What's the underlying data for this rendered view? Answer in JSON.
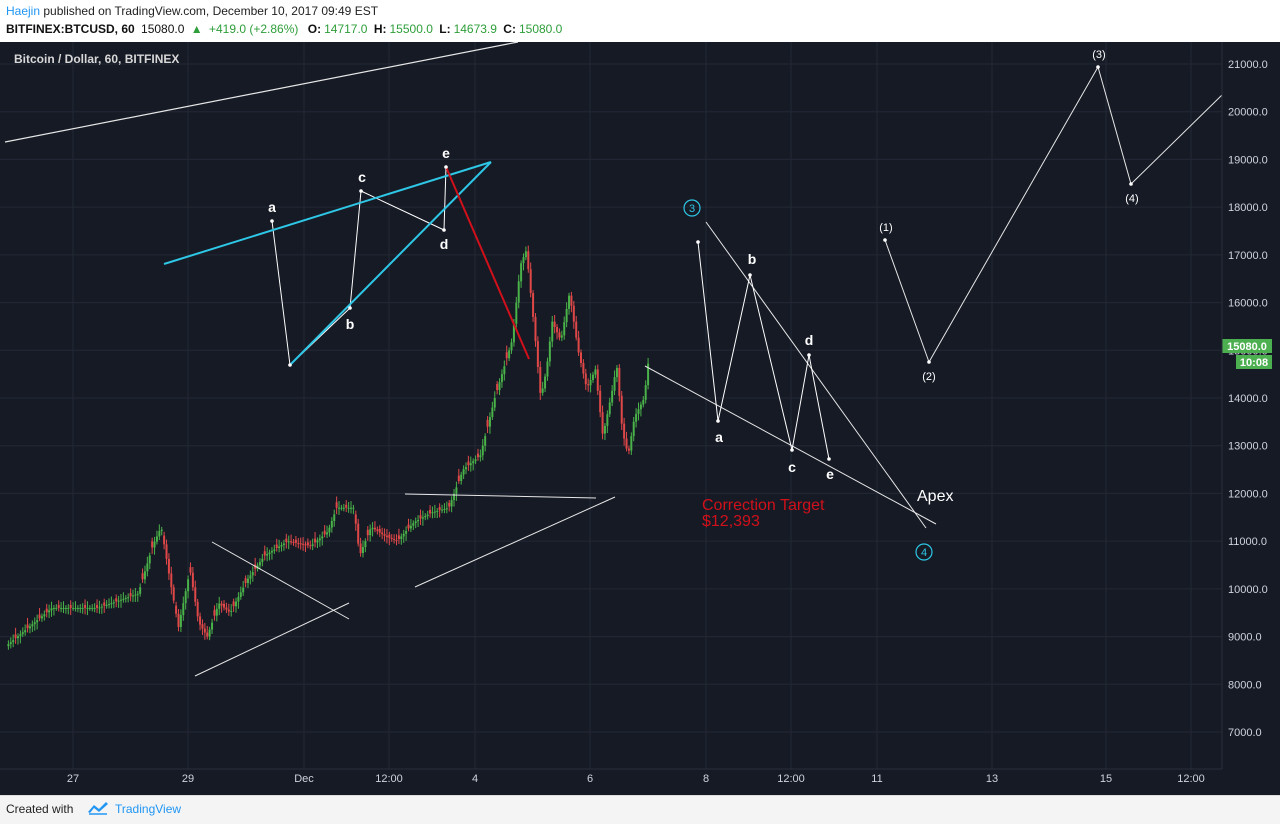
{
  "header": {
    "author": "Haejin",
    "published": "published on TradingView.com, December 10, 2017 09:49 EST",
    "symbol": "BITFINEX:BTCUSD, 60",
    "last": "15080.0",
    "change": "+419.0 (+2.86%)",
    "o_label": "O:",
    "o_value": "14717.0",
    "h_label": "H:",
    "h_value": "15500.0",
    "l_label": "L:",
    "l_value": "14673.9",
    "c_label": "C:",
    "c_value": "15080.0"
  },
  "chart_title": "Bitcoin / Dollar, 60, BITFINEX",
  "price_tag": "15080.0",
  "time_tag": "10:08",
  "colors": {
    "background": "#161a25",
    "up": "#49b249",
    "down": "#e04848",
    "accent_cyan": "#2ec7e6",
    "red_line": "#d0101a",
    "tag_green": "#4caf50"
  },
  "chart_data": {
    "type": "candlestick",
    "y_ticks": [
      "21000.0",
      "20000.0",
      "19000.0",
      "18000.0",
      "17000.0",
      "16000.0",
      "15000.0",
      "14000.0",
      "13000.0",
      "12000.0",
      "11000.0",
      "10000.0",
      "9000.0",
      "8000.0",
      "7000.0"
    ],
    "x_ticks": [
      "27",
      "29",
      "Dec",
      "12:00",
      "4",
      "6",
      "8",
      "12:00",
      "11",
      "13",
      "15",
      "12:00"
    ],
    "ylim": [
      6300,
      21500
    ],
    "anchors": [
      {
        "d": 0.0,
        "p": 8800
      },
      {
        "d": 0.8,
        "p": 9600
      },
      {
        "d": 1.6,
        "p": 9600
      },
      {
        "d": 2.3,
        "p": 9900
      },
      {
        "d": 2.55,
        "p": 10900
      },
      {
        "d": 2.7,
        "p": 11300
      },
      {
        "d": 2.85,
        "p": 10200
      },
      {
        "d": 3.0,
        "p": 9200
      },
      {
        "d": 3.2,
        "p": 10400
      },
      {
        "d": 3.35,
        "p": 9300
      },
      {
        "d": 3.5,
        "p": 9000
      },
      {
        "d": 3.7,
        "p": 9700
      },
      {
        "d": 3.9,
        "p": 9500
      },
      {
        "d": 4.2,
        "p": 10200
      },
      {
        "d": 4.5,
        "p": 10700
      },
      {
        "d": 4.9,
        "p": 11000
      },
      {
        "d": 5.3,
        "p": 10900
      },
      {
        "d": 5.6,
        "p": 11200
      },
      {
        "d": 5.75,
        "p": 11700
      },
      {
        "d": 6.05,
        "p": 11700
      },
      {
        "d": 6.15,
        "p": 10700
      },
      {
        "d": 6.35,
        "p": 11300
      },
      {
        "d": 6.6,
        "p": 11100
      },
      {
        "d": 6.8,
        "p": 11000
      },
      {
        "d": 7.1,
        "p": 11400
      },
      {
        "d": 7.4,
        "p": 11600
      },
      {
        "d": 7.7,
        "p": 11700
      },
      {
        "d": 7.95,
        "p": 12500
      },
      {
        "d": 8.25,
        "p": 12800
      },
      {
        "d": 8.5,
        "p": 14000
      },
      {
        "d": 8.8,
        "p": 15200
      },
      {
        "d": 8.95,
        "p": 16800
      },
      {
        "d": 9.05,
        "p": 17100
      },
      {
        "d": 9.2,
        "p": 15300
      },
      {
        "d": 9.3,
        "p": 14000
      },
      {
        "d": 9.4,
        "p": 14600
      },
      {
        "d": 9.5,
        "p": 15600
      },
      {
        "d": 9.65,
        "p": 15200
      },
      {
        "d": 9.8,
        "p": 16200
      },
      {
        "d": 9.95,
        "p": 15000
      },
      {
        "d": 10.1,
        "p": 14200
      },
      {
        "d": 10.25,
        "p": 14600
      },
      {
        "d": 10.38,
        "p": 13200
      },
      {
        "d": 10.55,
        "p": 14200
      },
      {
        "d": 10.62,
        "p": 14700
      },
      {
        "d": 10.72,
        "p": 13300
      },
      {
        "d": 10.82,
        "p": 12800
      },
      {
        "d": 10.93,
        "p": 13600
      },
      {
        "d": 11.1,
        "p": 14000
      },
      {
        "d": 11.2,
        "p": 15080
      }
    ],
    "red_candle_steps": [
      4,
      9,
      14,
      17,
      22,
      27,
      33,
      38,
      41,
      46,
      52,
      57,
      61,
      66,
      71,
      77,
      82,
      87,
      91,
      95,
      100,
      104,
      108,
      113,
      117,
      121,
      126,
      129,
      133,
      138,
      142,
      146,
      151,
      156,
      160,
      164,
      168,
      173,
      177,
      181,
      185,
      189,
      193,
      197,
      201,
      205,
      209
    ],
    "annotations": {
      "wave_labels_small": [
        "a",
        "b",
        "c",
        "d",
        "e"
      ],
      "wave_labels_main": [
        "a",
        "b",
        "c",
        "d",
        "e"
      ],
      "circle_3": "3",
      "circle_4": "4",
      "future_waves": [
        "(1)",
        "(2)",
        "(3)",
        "(4)"
      ],
      "apex": "Apex",
      "correction_target_line1": "Correction Target",
      "correction_target_line2": "$12,393"
    }
  },
  "footer": {
    "created_with": "Created with",
    "brand": "TradingView"
  }
}
